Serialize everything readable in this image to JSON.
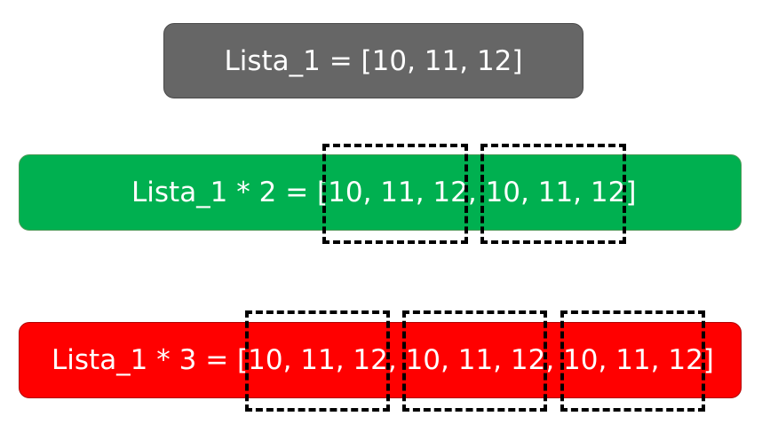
{
  "colors": {
    "gray_bar": "#666666",
    "green_bar": "#00b050",
    "red_bar": "#ff0000",
    "text": "#ffffff",
    "dashed_outline": "#000000"
  },
  "rows": [
    {
      "text": "Lista_1 = [10, 11, 12]"
    },
    {
      "text": "Lista_1 * 2 = [10, 11, 12, 10, 11, 12]"
    },
    {
      "text": "Lista_1 * 3 = [10, 11, 12, 10, 11, 12, 10, 11, 12]"
    }
  ]
}
